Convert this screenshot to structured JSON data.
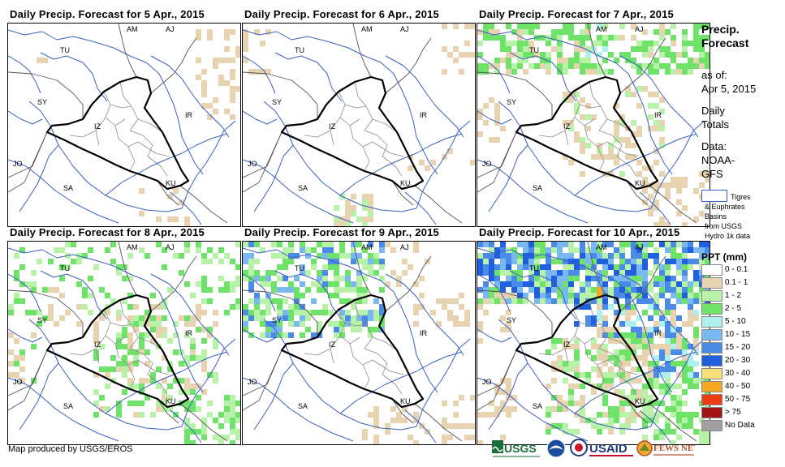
{
  "panels": [
    {
      "title": "Daily Precip. Forecast for 5 Apr., 2015"
    },
    {
      "title": "Daily Precip. Forecast for 6 Apr., 2015"
    },
    {
      "title": "Daily Precip. Forecast for 7 Apr., 2015"
    },
    {
      "title": "Daily Precip. Forecast for 8 Apr., 2015"
    },
    {
      "title": "Daily Precip. Forecast for 9 Apr., 2015"
    },
    {
      "title": "Daily Precip. Forecast for 10 Apr., 2015"
    }
  ],
  "map_labels": [
    "AM",
    "AJ",
    "TU",
    "SY",
    "IZ",
    "IR",
    "JO",
    "SA",
    "KU"
  ],
  "legend": {
    "title_line1": "Precip.",
    "title_line2": "Forecast",
    "asof_label": "as of:",
    "asof_date": "Apr 5, 2015",
    "totals_line1": "Daily",
    "totals_line2": "Totals",
    "data_line1": "Data:",
    "data_line2": "NOAA-",
    "data_line3": "GFS",
    "basins_line1": "Tigres",
    "basins_line2": "& Euphrates",
    "basins_line3": "Basins",
    "basins_line4": "from USGS",
    "basins_line5": "Hydro 1k data",
    "ppt_title": "PPT (mm)",
    "classes": [
      {
        "label": "0 - 0.1",
        "color": "#ffffff"
      },
      {
        "label": "0.1 - 1",
        "color": "#e8d3b0"
      },
      {
        "label": "1 - 2",
        "color": "#b7f2a8"
      },
      {
        "label": "2 - 5",
        "color": "#6fe26a"
      },
      {
        "label": "5 - 10",
        "color": "#aef0f0"
      },
      {
        "label": "10 - 15",
        "color": "#7ab8f2"
      },
      {
        "label": "15 - 20",
        "color": "#4a8be8"
      },
      {
        "label": "20 - 30",
        "color": "#1f5fe0"
      },
      {
        "label": "30 - 40",
        "color": "#f7e07a"
      },
      {
        "label": "40 - 50",
        "color": "#f5a623"
      },
      {
        "label": "50 - 75",
        "color": "#f03c14"
      },
      {
        "label": "> 75",
        "color": "#a01414"
      },
      {
        "label": "No Data",
        "color": "#a0a0a0"
      }
    ]
  },
  "footer": "Map produced by USGS/EROS",
  "logos": {
    "usgs": "USGS",
    "usaid": "USAID",
    "fewsnet": "FEWS NET"
  },
  "colors": {
    "river": "#3b5fc0",
    "border": "#000000",
    "province": "#8a8a8a",
    "coast": "#555555"
  }
}
